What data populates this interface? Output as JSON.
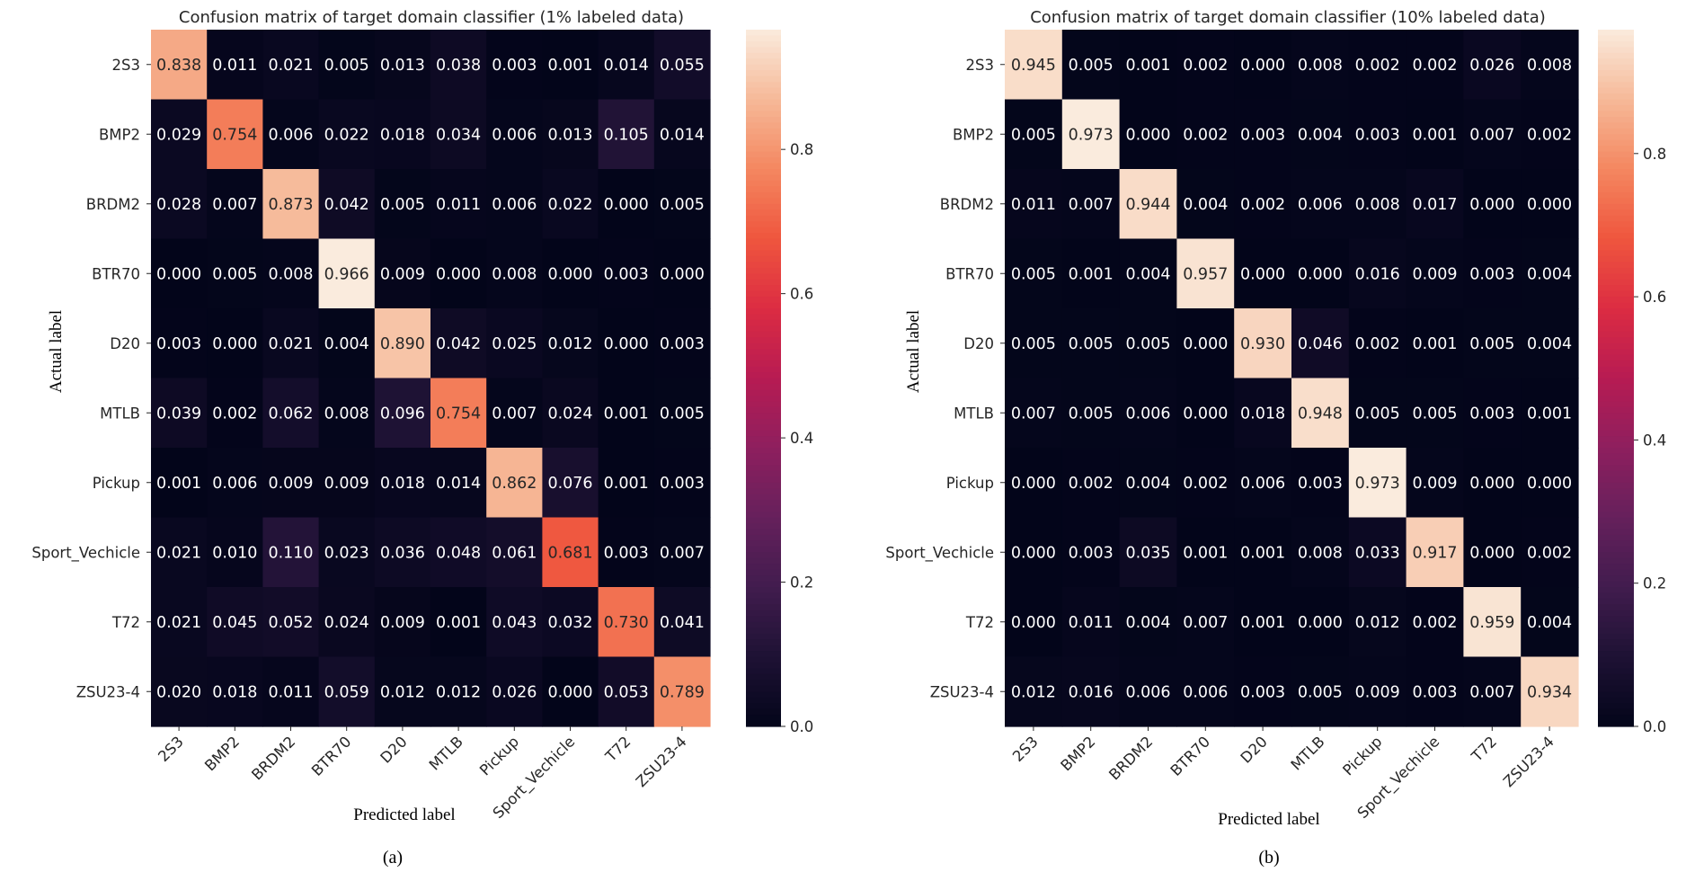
{
  "chart_data": [
    {
      "type": "heatmap",
      "title": "Confusion matrix of target domain classifier (1% labeled data)",
      "xlabel": "Predicted label",
      "ylabel": "Actual label",
      "caption": "(a)",
      "rows": [
        "2S3",
        "BMP2",
        "BRDM2",
        "BTR70",
        "D20",
        "MTLB",
        "Pickup",
        "Sport_Vechicle",
        "T72",
        "ZSU23-4"
      ],
      "cols": [
        "2S3",
        "BMP2",
        "BRDM2",
        "BTR70",
        "D20",
        "MTLB",
        "Pickup",
        "Sport_Vechicle",
        "T72",
        "ZSU23-4"
      ],
      "values": [
        [
          0.838,
          0.011,
          0.021,
          0.005,
          0.013,
          0.038,
          0.003,
          0.001,
          0.014,
          0.055
        ],
        [
          0.029,
          0.754,
          0.006,
          0.022,
          0.018,
          0.034,
          0.006,
          0.013,
          0.105,
          0.014
        ],
        [
          0.028,
          0.007,
          0.873,
          0.042,
          0.005,
          0.011,
          0.006,
          0.022,
          0.0,
          0.005
        ],
        [
          0.0,
          0.005,
          0.008,
          0.966,
          0.009,
          0.0,
          0.008,
          0.0,
          0.003,
          0.0
        ],
        [
          0.003,
          0.0,
          0.021,
          0.004,
          0.89,
          0.042,
          0.025,
          0.012,
          0.0,
          0.003
        ],
        [
          0.039,
          0.002,
          0.062,
          0.008,
          0.096,
          0.754,
          0.007,
          0.024,
          0.001,
          0.005
        ],
        [
          0.001,
          0.006,
          0.009,
          0.009,
          0.018,
          0.014,
          0.862,
          0.076,
          0.001,
          0.003
        ],
        [
          0.021,
          0.01,
          0.11,
          0.023,
          0.036,
          0.048,
          0.061,
          0.681,
          0.003,
          0.007
        ],
        [
          0.021,
          0.045,
          0.052,
          0.024,
          0.009,
          0.001,
          0.043,
          0.032,
          0.73,
          0.041
        ],
        [
          0.02,
          0.018,
          0.011,
          0.059,
          0.012,
          0.012,
          0.026,
          0.0,
          0.053,
          0.789
        ]
      ],
      "colorbar": {
        "range": [
          0.0,
          0.966
        ],
        "ticks": [
          "0.0",
          "0.2",
          "0.4",
          "0.6",
          "0.8"
        ]
      }
    },
    {
      "type": "heatmap",
      "title": "Confusion matrix of target domain classifier (10% labeled data)",
      "xlabel": "Predicted label",
      "ylabel": "Actual label",
      "caption": "(b)",
      "rows": [
        "2S3",
        "BMP2",
        "BRDM2",
        "BTR70",
        "D20",
        "MTLB",
        "Pickup",
        "Sport_Vechicle",
        "T72",
        "ZSU23-4"
      ],
      "cols": [
        "2S3",
        "BMP2",
        "BRDM2",
        "BTR70",
        "D20",
        "MTLB",
        "Pickup",
        "Sport_Vechicle",
        "T72",
        "ZSU23-4"
      ],
      "values": [
        [
          0.945,
          0.005,
          0.001,
          0.002,
          0.0,
          0.008,
          0.002,
          0.002,
          0.026,
          0.008
        ],
        [
          0.005,
          0.973,
          0.0,
          0.002,
          0.003,
          0.004,
          0.003,
          0.001,
          0.007,
          0.002
        ],
        [
          0.011,
          0.007,
          0.944,
          0.004,
          0.002,
          0.006,
          0.008,
          0.017,
          0.0,
          0.0
        ],
        [
          0.005,
          0.001,
          0.004,
          0.957,
          0.0,
          0.0,
          0.016,
          0.009,
          0.003,
          0.004
        ],
        [
          0.005,
          0.005,
          0.005,
          0.0,
          0.93,
          0.046,
          0.002,
          0.001,
          0.005,
          0.004
        ],
        [
          0.007,
          0.005,
          0.006,
          0.0,
          0.018,
          0.948,
          0.005,
          0.005,
          0.003,
          0.001
        ],
        [
          0.0,
          0.002,
          0.004,
          0.002,
          0.006,
          0.003,
          0.973,
          0.009,
          0.0,
          0.0
        ],
        [
          0.0,
          0.003,
          0.035,
          0.001,
          0.001,
          0.008,
          0.033,
          0.917,
          0.0,
          0.002
        ],
        [
          0.0,
          0.011,
          0.004,
          0.007,
          0.001,
          0.0,
          0.012,
          0.002,
          0.959,
          0.004
        ],
        [
          0.012,
          0.016,
          0.006,
          0.006,
          0.003,
          0.005,
          0.009,
          0.003,
          0.007,
          0.934
        ]
      ],
      "colorbar": {
        "range": [
          0.0,
          0.973
        ],
        "ticks": [
          "0.0",
          "0.2",
          "0.4",
          "0.6",
          "0.8"
        ]
      }
    }
  ]
}
